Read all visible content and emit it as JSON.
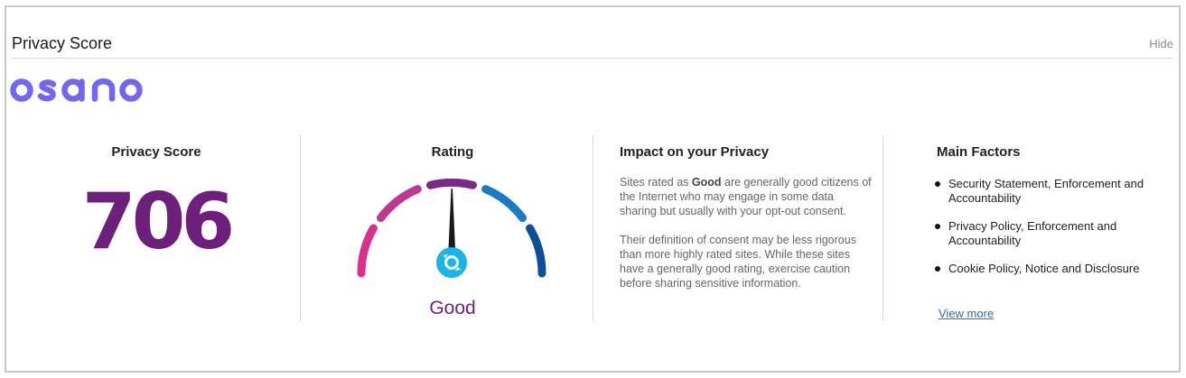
{
  "header": {
    "title": "Privacy Score",
    "hide_label": "Hide"
  },
  "logo": {
    "text": "osano",
    "color": "#7366f0"
  },
  "score": {
    "title": "Privacy Score",
    "value": "706",
    "color": "#6d1f7c"
  },
  "rating": {
    "title": "Rating",
    "label": "Good",
    "level_fraction": 0.5,
    "segment_colors": [
      "#d9308c",
      "#c03695",
      "#9a2a8a",
      "#6e2a86",
      "#1b7bc2",
      "#0b4f9a"
    ],
    "needle_icon": "osano-refresh-icon"
  },
  "impact": {
    "title": "Impact on your Privacy",
    "para1_before": "Sites rated as ",
    "para1_bold": "Good",
    "para1_after": " are generally good citizens of the Internet who may engage in some data sharing but usually with your opt-out consent.",
    "para2": "Their definition of consent may be less rigorous than more highly rated sites. While these sites have a generally good rating, exercise caution before sharing sensitive information."
  },
  "factors": {
    "title": "Main Factors",
    "items": [
      {
        "label": "Security Statement, Enforcement and Accountability"
      },
      {
        "label": "Privacy Policy, Enforcement and Accountability"
      },
      {
        "label": "Cookie Policy, Notice and Disclosure"
      }
    ],
    "view_more_label": "View more"
  }
}
